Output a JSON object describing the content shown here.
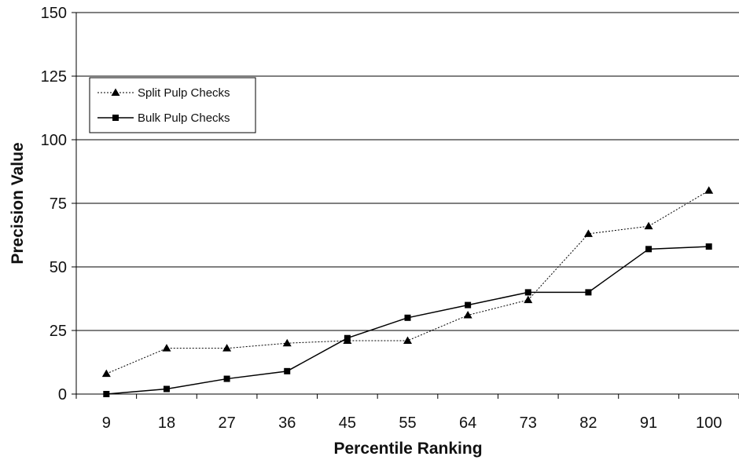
{
  "chart_data": {
    "type": "line",
    "title": "",
    "xlabel": "Percentile Ranking",
    "ylabel": "Precision Value",
    "categories": [
      "9",
      "18",
      "27",
      "36",
      "45",
      "55",
      "64",
      "73",
      "82",
      "91",
      "100"
    ],
    "ylim": [
      0,
      150
    ],
    "yticks": [
      "0",
      "25",
      "50",
      "75",
      "100",
      "125",
      "150"
    ],
    "grid": "horizontal",
    "legend_position": "top-left",
    "series": [
      {
        "name": "Split Pulp Checks",
        "marker": "triangle",
        "line_style": "dotted",
        "color": "#000000",
        "values": [
          8,
          18,
          18,
          20,
          21,
          21,
          31,
          37,
          63,
          66,
          80
        ]
      },
      {
        "name": "Bulk Pulp Checks",
        "marker": "square",
        "line_style": "solid",
        "color": "#000000",
        "values": [
          0,
          2,
          6,
          9,
          22,
          30,
          35,
          40,
          40,
          57,
          58
        ]
      }
    ]
  }
}
